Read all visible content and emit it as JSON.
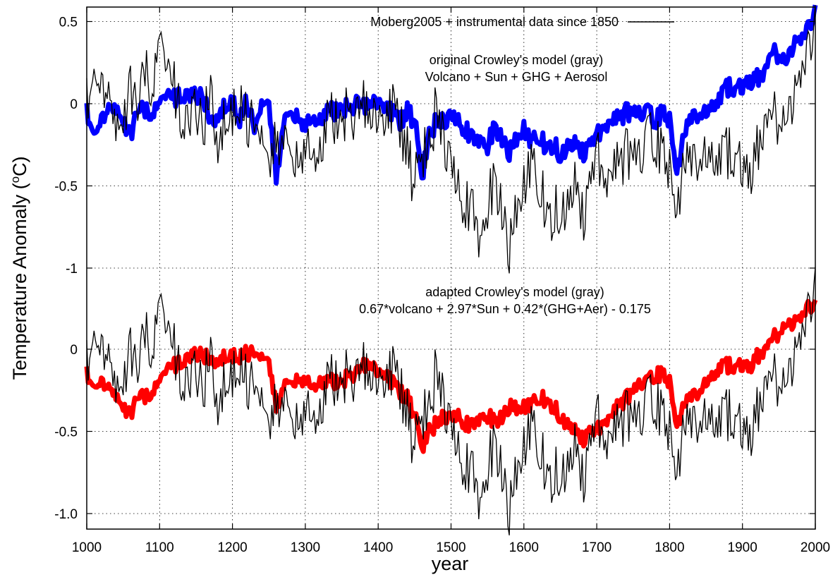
{
  "chart_data": {
    "type": "line",
    "xlabel": "year",
    "ylabel_main": "Temperature Anomaly (",
    "ylabel_sup": "o",
    "ylabel_tail": "C)",
    "xlim": [
      1000,
      2000
    ],
    "x_ticks": [
      1000,
      1100,
      1200,
      1300,
      1400,
      1500,
      1600,
      1700,
      1800,
      1900,
      2000
    ],
    "y_ticks_upper": [
      "0.5",
      "0",
      "-0.5",
      "-1"
    ],
    "y_ticks_lower": [
      "0",
      "-0.5",
      "-1.0"
    ],
    "grid": true,
    "legend": {
      "label": "Moberg2005 + instrumental data since 1850",
      "placement": "top"
    },
    "annotations": {
      "upper_line1": "original Crowley's model (gray)",
      "upper_line2": "Volcano + Sun + GHG + Aerosol",
      "lower_line1": "adapted Crowley's model (gray)",
      "lower_line2": "0.67*volcano + 2.97*Sun + 0.42*(GHG+Aer) - 0.175"
    },
    "series": [
      {
        "name": "Moberg2005 + instrumental data since 1850",
        "color": "#000000",
        "x": [
          1000,
          1010,
          1020,
          1030,
          1040,
          1050,
          1060,
          1070,
          1080,
          1090,
          1100,
          1110,
          1120,
          1130,
          1140,
          1150,
          1160,
          1170,
          1180,
          1190,
          1200,
          1210,
          1220,
          1230,
          1240,
          1250,
          1260,
          1270,
          1280,
          1290,
          1300,
          1310,
          1320,
          1330,
          1340,
          1350,
          1360,
          1370,
          1380,
          1390,
          1400,
          1410,
          1420,
          1430,
          1440,
          1450,
          1460,
          1470,
          1480,
          1490,
          1500,
          1510,
          1520,
          1530,
          1540,
          1550,
          1560,
          1570,
          1580,
          1590,
          1600,
          1610,
          1620,
          1630,
          1640,
          1650,
          1660,
          1670,
          1680,
          1690,
          1700,
          1710,
          1720,
          1730,
          1740,
          1750,
          1760,
          1770,
          1780,
          1790,
          1800,
          1810,
          1820,
          1830,
          1840,
          1850,
          1860,
          1870,
          1880,
          1890,
          1900,
          1910,
          1920,
          1930,
          1940,
          1950,
          1960,
          1970,
          1980,
          1990,
          2000
        ],
        "values": [
          0.0,
          0.3,
          0.1,
          0.0,
          -0.2,
          -0.1,
          0.1,
          -0.1,
          0.2,
          0.1,
          0.4,
          0.1,
          0.1,
          -0.1,
          -0.1,
          0.0,
          -0.1,
          0.0,
          -0.2,
          -0.1,
          -0.1,
          0.0,
          -0.1,
          -0.1,
          -0.1,
          -0.3,
          -0.2,
          -0.3,
          -0.3,
          -0.4,
          -0.3,
          -0.2,
          -0.3,
          -0.1,
          -0.1,
          -0.1,
          0.0,
          -0.1,
          0.0,
          -0.1,
          -0.1,
          -0.1,
          0.0,
          -0.1,
          -0.3,
          -0.5,
          -0.3,
          -0.3,
          0.0,
          -0.2,
          -0.3,
          -0.5,
          -0.6,
          -0.6,
          -0.8,
          -0.6,
          -0.5,
          -0.6,
          -0.9,
          -0.6,
          -0.5,
          -0.4,
          -0.5,
          -0.6,
          -0.7,
          -0.6,
          -0.6,
          -0.5,
          -0.7,
          -0.5,
          -0.3,
          -0.5,
          -0.4,
          -0.4,
          -0.3,
          -0.3,
          -0.3,
          -0.2,
          -0.2,
          -0.3,
          -0.4,
          -0.6,
          -0.4,
          -0.4,
          -0.3,
          -0.3,
          -0.3,
          -0.3,
          -0.3,
          -0.3,
          -0.4,
          -0.4,
          -0.3,
          -0.1,
          -0.1,
          -0.1,
          -0.1,
          0.0,
          0.2,
          0.3,
          0.6
        ]
      },
      {
        "name": "original Crowley's model (gray)",
        "color": "#0000ff",
        "x": [
          1000,
          1010,
          1020,
          1030,
          1040,
          1050,
          1060,
          1070,
          1080,
          1090,
          1100,
          1110,
          1120,
          1130,
          1140,
          1150,
          1160,
          1170,
          1180,
          1190,
          1200,
          1210,
          1220,
          1230,
          1240,
          1250,
          1260,
          1270,
          1280,
          1290,
          1300,
          1310,
          1320,
          1330,
          1340,
          1350,
          1360,
          1370,
          1380,
          1390,
          1400,
          1410,
          1420,
          1430,
          1440,
          1450,
          1460,
          1470,
          1480,
          1490,
          1500,
          1510,
          1520,
          1530,
          1540,
          1550,
          1560,
          1570,
          1580,
          1590,
          1600,
          1610,
          1620,
          1630,
          1640,
          1650,
          1660,
          1670,
          1680,
          1690,
          1700,
          1710,
          1720,
          1730,
          1740,
          1750,
          1760,
          1770,
          1780,
          1790,
          1800,
          1810,
          1820,
          1830,
          1840,
          1850,
          1860,
          1870,
          1880,
          1890,
          1900,
          1910,
          1920,
          1930,
          1940,
          1950,
          1960,
          1970,
          1980,
          1990,
          2000
        ],
        "values": [
          -0.05,
          -0.15,
          -0.1,
          -0.05,
          -0.05,
          -0.1,
          -0.2,
          -0.05,
          -0.05,
          -0.05,
          0.0,
          0.02,
          0.03,
          0.05,
          0.05,
          0.06,
          0.06,
          -0.15,
          -0.05,
          -0.02,
          0.0,
          -0.1,
          0.02,
          -0.15,
          0.03,
          0.03,
          -0.45,
          -0.15,
          -0.05,
          -0.1,
          -0.15,
          -0.05,
          -0.1,
          -0.05,
          -0.05,
          -0.02,
          -0.02,
          0.0,
          -0.02,
          0.0,
          0.0,
          -0.02,
          -0.05,
          -0.1,
          -0.05,
          -0.1,
          -0.45,
          -0.2,
          -0.1,
          -0.1,
          -0.05,
          -0.1,
          -0.15,
          -0.2,
          -0.2,
          -0.25,
          -0.15,
          -0.2,
          -0.3,
          -0.2,
          -0.15,
          -0.25,
          -0.2,
          -0.25,
          -0.25,
          -0.3,
          -0.25,
          -0.25,
          -0.3,
          -0.25,
          -0.2,
          -0.15,
          -0.1,
          -0.1,
          -0.05,
          -0.05,
          -0.05,
          -0.05,
          -0.1,
          -0.05,
          -0.1,
          -0.4,
          -0.2,
          -0.1,
          -0.05,
          -0.05,
          0.0,
          0.05,
          0.1,
          0.1,
          0.1,
          0.15,
          0.15,
          0.2,
          0.3,
          0.3,
          0.25,
          0.35,
          0.4,
          0.45,
          0.6
        ]
      },
      {
        "name": "adapted Crowley's model (gray)",
        "color": "#ff0000",
        "x": [
          1000,
          1010,
          1020,
          1030,
          1040,
          1050,
          1060,
          1070,
          1080,
          1090,
          1100,
          1110,
          1120,
          1130,
          1140,
          1150,
          1160,
          1170,
          1180,
          1190,
          1200,
          1210,
          1220,
          1230,
          1240,
          1250,
          1260,
          1270,
          1280,
          1290,
          1300,
          1310,
          1320,
          1330,
          1340,
          1350,
          1360,
          1370,
          1380,
          1390,
          1400,
          1410,
          1420,
          1430,
          1440,
          1450,
          1460,
          1470,
          1480,
          1490,
          1500,
          1510,
          1520,
          1530,
          1540,
          1550,
          1560,
          1570,
          1580,
          1590,
          1600,
          1610,
          1620,
          1630,
          1640,
          1650,
          1660,
          1670,
          1680,
          1690,
          1700,
          1710,
          1720,
          1730,
          1740,
          1750,
          1760,
          1770,
          1780,
          1790,
          1800,
          1810,
          1820,
          1830,
          1840,
          1850,
          1860,
          1870,
          1880,
          1890,
          1900,
          1910,
          1920,
          1930,
          1940,
          1950,
          1960,
          1970,
          1980,
          1990,
          2000
        ],
        "values": [
          -0.15,
          -0.2,
          -0.2,
          -0.25,
          -0.3,
          -0.35,
          -0.4,
          -0.3,
          -0.3,
          -0.25,
          -0.2,
          -0.15,
          -0.1,
          -0.08,
          -0.05,
          -0.02,
          -0.02,
          -0.1,
          -0.05,
          -0.05,
          -0.05,
          -0.05,
          -0.02,
          -0.02,
          -0.02,
          -0.05,
          -0.35,
          -0.25,
          -0.2,
          -0.2,
          -0.2,
          -0.2,
          -0.2,
          -0.2,
          -0.2,
          -0.2,
          -0.15,
          -0.15,
          -0.1,
          -0.1,
          -0.15,
          -0.15,
          -0.2,
          -0.25,
          -0.3,
          -0.4,
          -0.6,
          -0.5,
          -0.45,
          -0.4,
          -0.4,
          -0.4,
          -0.45,
          -0.45,
          -0.4,
          -0.4,
          -0.45,
          -0.4,
          -0.35,
          -0.35,
          -0.35,
          -0.35,
          -0.3,
          -0.3,
          -0.35,
          -0.4,
          -0.45,
          -0.5,
          -0.55,
          -0.5,
          -0.5,
          -0.45,
          -0.4,
          -0.35,
          -0.3,
          -0.25,
          -0.2,
          -0.2,
          -0.15,
          -0.15,
          -0.2,
          -0.45,
          -0.35,
          -0.3,
          -0.25,
          -0.2,
          -0.15,
          -0.1,
          -0.1,
          -0.1,
          -0.1,
          -0.1,
          -0.05,
          0.0,
          0.05,
          0.1,
          0.15,
          0.15,
          0.2,
          0.25,
          0.3
        ]
      }
    ]
  }
}
